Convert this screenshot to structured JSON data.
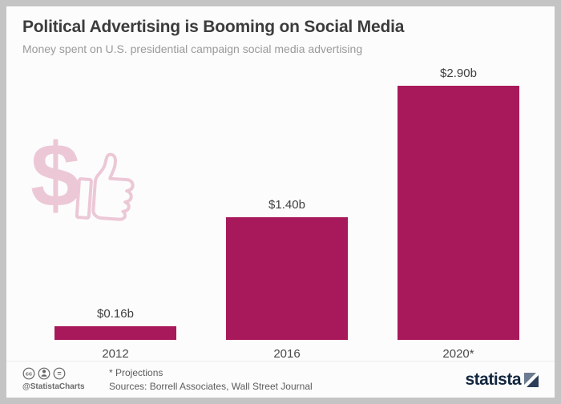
{
  "chart_data": {
    "type": "bar",
    "title": "Political Advertising is Booming on Social Media",
    "subtitle": "Money spent on U.S. presidential campaign social media advertising",
    "categories": [
      "2012",
      "2016",
      "2020*"
    ],
    "values": [
      0.16,
      1.4,
      2.9
    ],
    "value_labels": [
      "$0.16b",
      "$1.40b",
      "$2.90b"
    ],
    "ylim": [
      0,
      2.9
    ],
    "bar_color": "#a8195b",
    "grid": false,
    "legend": "none"
  },
  "decoration": {
    "icon": "dollar-sign-thumbs-up-icon",
    "color": "#ecc8d6"
  },
  "footer": {
    "license_icons": [
      "cc-icon",
      "attribution-icon",
      "no-derivatives-icon"
    ],
    "handle": "@StatistaCharts",
    "note": "* Projections",
    "sources": "Sources: Borrell Associates, Wall Street Journal",
    "brand": "statista"
  }
}
